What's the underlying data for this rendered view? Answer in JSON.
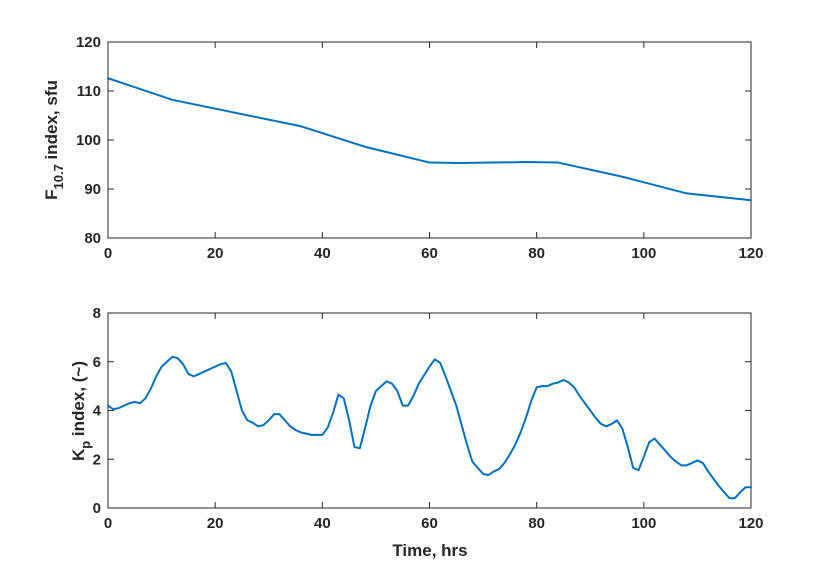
{
  "chart_data": [
    {
      "type": "line",
      "title": "",
      "xlabel": "",
      "ylabel": "F10.7 index, sfu",
      "ylabel_parts": [
        "F",
        "10.7",
        " index, sfu"
      ],
      "xlim": [
        0,
        120
      ],
      "ylim": [
        80,
        120
      ],
      "xticks": [
        0,
        20,
        40,
        60,
        80,
        100,
        120
      ],
      "yticks": [
        80,
        90,
        100,
        110,
        120
      ],
      "grid": false,
      "color": "#0072BD",
      "series": [
        {
          "x": [
            0,
            12,
            24,
            36,
            48,
            60,
            66,
            72,
            78,
            84,
            96,
            108,
            120
          ],
          "values": [
            112.6,
            108.2,
            105.5,
            102.8,
            98.6,
            95.4,
            95.3,
            95.4,
            95.5,
            95.4,
            92.5,
            89.1,
            87.7
          ]
        }
      ]
    },
    {
      "type": "line",
      "title": "",
      "xlabel": "Time, hrs",
      "ylabel": "Kp index, (~)",
      "ylabel_parts": [
        "K",
        "p",
        " index, (~)"
      ],
      "xlim": [
        0,
        120
      ],
      "ylim": [
        0,
        8
      ],
      "xticks": [
        0,
        20,
        40,
        60,
        80,
        100,
        120
      ],
      "yticks": [
        0,
        2,
        4,
        6,
        8
      ],
      "grid": false,
      "color": "#0072BD",
      "series": [
        {
          "x": [
            0,
            1,
            2,
            3,
            4,
            5,
            6,
            7,
            8,
            9,
            10,
            11,
            12,
            13,
            14,
            15,
            16,
            17,
            18,
            19,
            20,
            21,
            22,
            23,
            24,
            25,
            26,
            27,
            28,
            29,
            30,
            31,
            32,
            33,
            34,
            35,
            36,
            37,
            38,
            39,
            40,
            41,
            42,
            43,
            44,
            45,
            46,
            47,
            48,
            49,
            50,
            51,
            52,
            53,
            54,
            55,
            56,
            57,
            58,
            59,
            60,
            61,
            62,
            63,
            64,
            65,
            66,
            67,
            68,
            69,
            70,
            71,
            72,
            73,
            74,
            75,
            76,
            77,
            78,
            79,
            80,
            81,
            82,
            83,
            84,
            85,
            86,
            87,
            88,
            89,
            90,
            91,
            92,
            93,
            94,
            95,
            96,
            97,
            98,
            99,
            100,
            101,
            102,
            103,
            104,
            105,
            106,
            107,
            108,
            109,
            110,
            111,
            112,
            113,
            114,
            115,
            116,
            117,
            118,
            119,
            120
          ],
          "values": [
            4.2,
            4.05,
            4.1,
            4.2,
            4.3,
            4.35,
            4.3,
            4.5,
            4.9,
            5.4,
            5.8,
            6.0,
            6.2,
            6.15,
            5.9,
            5.5,
            5.4,
            5.5,
            5.6,
            5.7,
            5.8,
            5.9,
            5.95,
            5.6,
            4.8,
            4.0,
            3.6,
            3.5,
            3.35,
            3.4,
            3.6,
            3.85,
            3.85,
            3.6,
            3.35,
            3.2,
            3.1,
            3.05,
            3.0,
            3.0,
            3.0,
            3.3,
            3.9,
            4.65,
            4.5,
            3.6,
            2.5,
            2.45,
            3.3,
            4.2,
            4.8,
            5.0,
            5.2,
            5.1,
            4.8,
            4.2,
            4.2,
            4.6,
            5.1,
            5.45,
            5.8,
            6.1,
            5.95,
            5.4,
            4.8,
            4.2,
            3.4,
            2.6,
            1.9,
            1.65,
            1.4,
            1.35,
            1.5,
            1.6,
            1.85,
            2.2,
            2.6,
            3.1,
            3.7,
            4.4,
            4.95,
            5.0,
            5.0,
            5.1,
            5.15,
            5.25,
            5.15,
            4.95,
            4.6,
            4.3,
            4.0,
            3.7,
            3.45,
            3.35,
            3.45,
            3.6,
            3.25,
            2.5,
            1.65,
            1.55,
            2.1,
            2.7,
            2.85,
            2.6,
            2.35,
            2.1,
            1.9,
            1.75,
            1.75,
            1.85,
            1.95,
            1.85,
            1.5,
            1.2,
            0.9,
            0.65,
            0.4,
            0.4,
            0.65,
            0.85,
            0.85
          ]
        }
      ]
    }
  ]
}
